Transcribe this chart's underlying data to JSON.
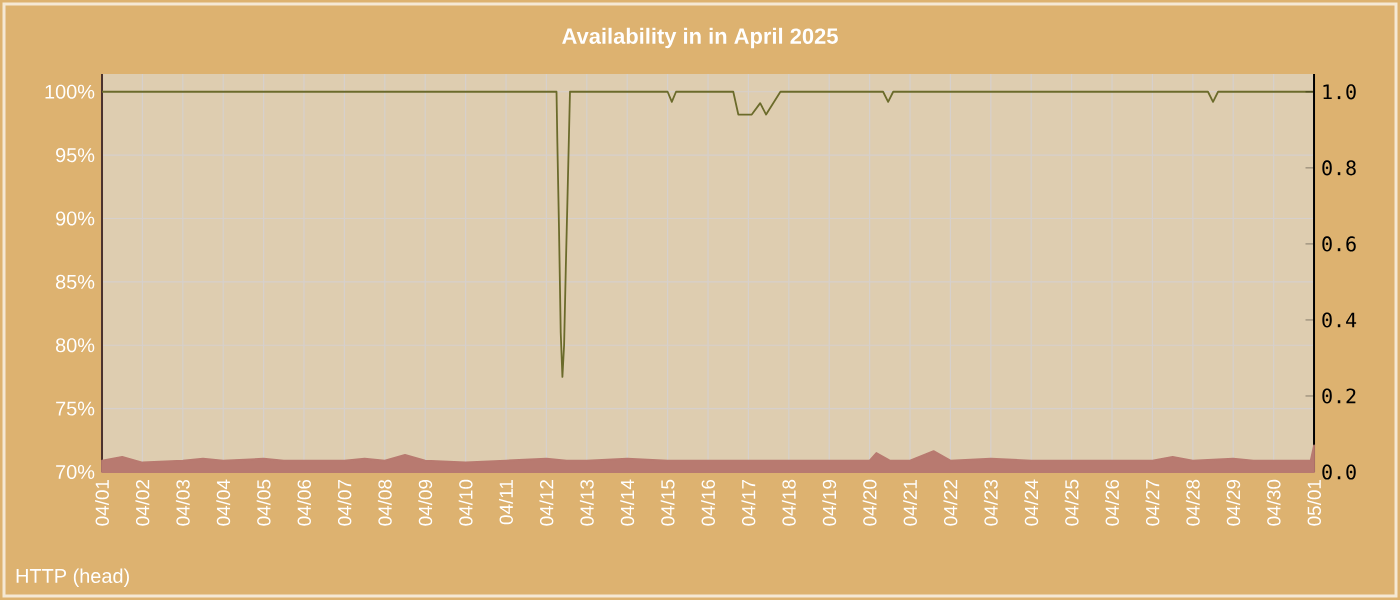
{
  "chart_data": {
    "type": "area",
    "title": "Availability in in April 2025",
    "annotations": [
      "HTTP (head)"
    ],
    "xlim": [
      "2025-04-01",
      "2025-05-01"
    ],
    "xticks": [
      {
        "value": "2025-04-01",
        "label": "04/01"
      },
      {
        "value": "2025-04-02",
        "label": "04/02"
      },
      {
        "value": "2025-04-03",
        "label": "04/03"
      },
      {
        "value": "2025-04-04",
        "label": "04/04"
      },
      {
        "value": "2025-04-05",
        "label": "04/05"
      },
      {
        "value": "2025-04-06",
        "label": "04/06"
      },
      {
        "value": "2025-04-07",
        "label": "04/07"
      },
      {
        "value": "2025-04-08",
        "label": "04/08"
      },
      {
        "value": "2025-04-09",
        "label": "04/09"
      },
      {
        "value": "2025-04-10",
        "label": "04/10"
      },
      {
        "value": "2025-04-11",
        "label": "04/11"
      },
      {
        "value": "2025-04-12",
        "label": "04/12"
      },
      {
        "value": "2025-04-13",
        "label": "04/13"
      },
      {
        "value": "2025-04-14",
        "label": "04/14"
      },
      {
        "value": "2025-04-15",
        "label": "04/15"
      },
      {
        "value": "2025-04-16",
        "label": "04/16"
      },
      {
        "value": "2025-04-17",
        "label": "04/17"
      },
      {
        "value": "2025-04-18",
        "label": "04/18"
      },
      {
        "value": "2025-04-19",
        "label": "04/19"
      },
      {
        "value": "2025-04-20",
        "label": "04/20"
      },
      {
        "value": "2025-04-21",
        "label": "04/21"
      },
      {
        "value": "2025-04-22",
        "label": "04/22"
      },
      {
        "value": "2025-04-23",
        "label": "04/23"
      },
      {
        "value": "2025-04-24",
        "label": "04/24"
      },
      {
        "value": "2025-04-25",
        "label": "04/25"
      },
      {
        "value": "2025-04-26",
        "label": "04/26"
      },
      {
        "value": "2025-04-27",
        "label": "04/27"
      },
      {
        "value": "2025-04-28",
        "label": "04/28"
      },
      {
        "value": "2025-04-29",
        "label": "04/29"
      },
      {
        "value": "2025-04-30",
        "label": "04/30"
      },
      {
        "value": "2025-05-01",
        "label": "05/01"
      }
    ],
    "ylim": [
      70,
      101.4
    ],
    "yticks": [
      {
        "value": 70,
        "label": "70%"
      },
      {
        "value": 75,
        "label": "75%"
      },
      {
        "value": 80,
        "label": "80%"
      },
      {
        "value": 85,
        "label": "85%"
      },
      {
        "value": 90,
        "label": "90%"
      },
      {
        "value": 95,
        "label": "95%"
      },
      {
        "value": 100,
        "label": "100%"
      }
    ],
    "y2lim": [
      0,
      1.047
    ],
    "y2ticks": [
      {
        "value": 0,
        "label": "0.0"
      },
      {
        "value": 0.2,
        "label": "0.2"
      },
      {
        "value": 0.4,
        "label": "0.4"
      },
      {
        "value": 0.6,
        "label": "0.6"
      },
      {
        "value": 0.8,
        "label": "0.8"
      },
      {
        "value": 1,
        "label": "1.0"
      }
    ],
    "grid": true,
    "series": [
      {
        "type": "line",
        "color": "#6b6b2b",
        "x": [
          "2025-04-01T00:00",
          "2025-04-12T06:00",
          "2025-04-12T06:30",
          "2025-04-12T07:30",
          "2025-04-12T08:30",
          "2025-04-12T09:30",
          "2025-04-12T10:30",
          "2025-04-12T11:30",
          "2025-04-12T12:30",
          "2025-04-12T14:00",
          "2025-04-15T00:00",
          "2025-04-15T02:30",
          "2025-04-15T05:00",
          "2025-04-16T15:00",
          "2025-04-16T18:00",
          "2025-04-17T02:00",
          "2025-04-17T07:00",
          "2025-04-17T10:30",
          "2025-04-17T19:00",
          "2025-04-20T08:00",
          "2025-04-20T11:00",
          "2025-04-20T14:00",
          "2025-04-28T09:00",
          "2025-04-28T12:00",
          "2025-04-28T15:00",
          "2025-05-01T00:00"
        ],
        "values": [
          100,
          100,
          96,
          89,
          81,
          77.5,
          80,
          86,
          91.5,
          100,
          100,
          99.2,
          100,
          100,
          98.2,
          98.2,
          99.1,
          98.2,
          100,
          100,
          99.2,
          100,
          100,
          99.2,
          100,
          100
        ]
      },
      {
        "color": "#b87a70",
        "axis": "y2",
        "x": [
          "2025-04-01T00:00",
          "2025-04-01T12:00",
          "2025-04-02T00:00",
          "2025-04-03T00:00",
          "2025-04-03T12:00",
          "2025-04-04T00:00",
          "2025-04-05T00:00",
          "2025-04-05T12:00",
          "2025-04-06T00:00",
          "2025-04-07T00:00",
          "2025-04-07T12:00",
          "2025-04-08T00:00",
          "2025-04-08T12:00",
          "2025-04-09T00:00",
          "2025-04-10T00:00",
          "2025-04-11T00:00",
          "2025-04-12T00:00",
          "2025-04-12T12:00",
          "2025-04-13T00:00",
          "2025-04-14T00:00",
          "2025-04-15T00:00",
          "2025-04-16T00:00",
          "2025-04-17T00:00",
          "2025-04-18T00:00",
          "2025-04-19T00:00",
          "2025-04-20T00:00",
          "2025-04-20T04:00",
          "2025-04-20T12:00",
          "2025-04-21T00:00",
          "2025-04-21T14:00",
          "2025-04-22T00:00",
          "2025-04-23T00:00",
          "2025-04-24T00:00",
          "2025-04-25T00:00",
          "2025-04-26T00:00",
          "2025-04-27T00:00",
          "2025-04-27T12:00",
          "2025-04-28T00:00",
          "2025-04-29T00:00",
          "2025-04-29T12:00",
          "2025-04-30T00:00",
          "2025-04-30T22:00",
          "2025-05-01T00:00"
        ],
        "values": [
          0.03,
          0.04,
          0.025,
          0.03,
          0.035,
          0.03,
          0.035,
          0.03,
          0.03,
          0.03,
          0.035,
          0.03,
          0.045,
          0.03,
          0.025,
          0.03,
          0.035,
          0.03,
          0.03,
          0.035,
          0.03,
          0.03,
          0.03,
          0.03,
          0.03,
          0.03,
          0.05,
          0.03,
          0.03,
          0.055,
          0.03,
          0.035,
          0.03,
          0.03,
          0.03,
          0.03,
          0.04,
          0.03,
          0.035,
          0.03,
          0.03,
          0.03,
          0.07
        ]
      }
    ]
  }
}
